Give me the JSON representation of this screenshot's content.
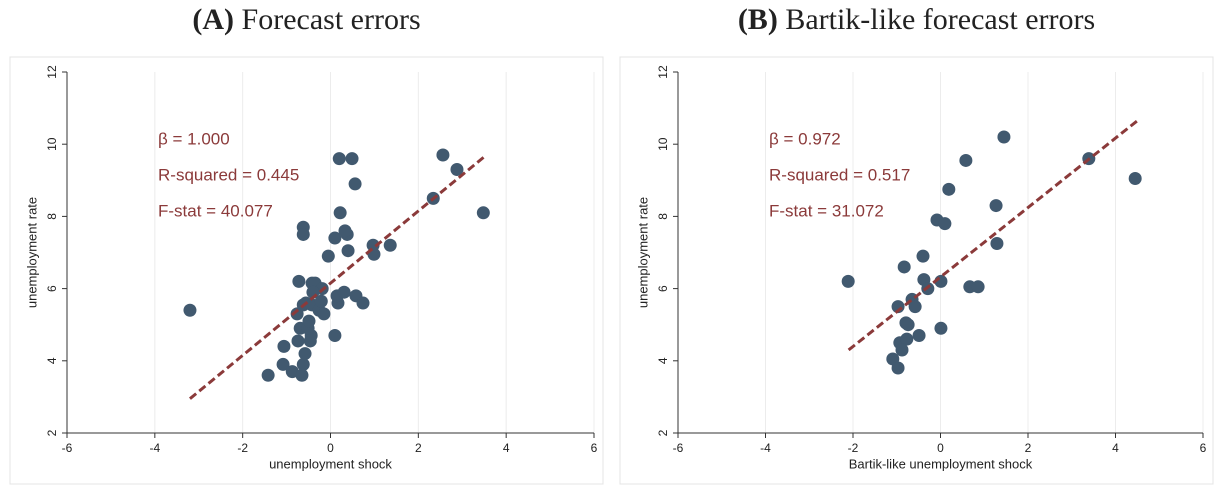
{
  "chart_data": [
    {
      "type": "scatter",
      "title_prefix": "(A)",
      "title": "Forecast errors",
      "x_label": "unemployment shock",
      "y_label": "unemployment rate",
      "xlim": [
        -6,
        6
      ],
      "ylim": [
        2,
        12
      ],
      "xticks": [
        -6,
        -4,
        -2,
        0,
        2,
        4,
        6
      ],
      "yticks": [
        2,
        4,
        6,
        8,
        10,
        12
      ],
      "grid": true,
      "color": "#41596f",
      "line_color": "#8b3a3a",
      "x": [
        -3.2,
        -1.42,
        -1.08,
        -0.87,
        -0.65,
        -0.62,
        -1.06,
        -0.58,
        -0.46,
        -0.44,
        -0.74,
        -0.69,
        -0.51,
        -0.49,
        -0.76,
        -0.62,
        -0.56,
        -0.42,
        -0.26,
        -0.15,
        -0.21,
        -0.72,
        -0.42,
        -0.35,
        -0.19,
        -0.4,
        0.1,
        0.17,
        0.15,
        0.31,
        0.58,
        0.74,
        -0.05,
        0.1,
        0.38,
        0.33,
        0.4,
        -0.62,
        -0.62,
        0.22,
        0.97,
        0.99,
        1.36,
        0.2,
        0.49,
        0.56,
        2.34,
        2.56,
        2.88,
        3.48
      ],
      "y": [
        5.4,
        3.6,
        3.9,
        3.7,
        3.6,
        3.9,
        4.4,
        4.2,
        4.55,
        4.7,
        4.55,
        4.9,
        4.9,
        5.1,
        5.3,
        5.55,
        5.6,
        5.55,
        5.4,
        5.3,
        5.65,
        6.2,
        6.15,
        6.15,
        6.0,
        5.9,
        4.7,
        5.6,
        5.8,
        5.9,
        5.8,
        5.6,
        6.9,
        7.4,
        7.5,
        7.6,
        7.05,
        7.7,
        7.5,
        8.1,
        7.2,
        6.95,
        7.2,
        9.6,
        9.6,
        8.9,
        8.5,
        9.7,
        9.3,
        8.1
      ],
      "fit_line": {
        "x": [
          -3.2,
          3.5
        ],
        "y": [
          2.95,
          9.65
        ]
      },
      "annotations": [
        "β = 1.000",
        "R-squared = 0.445",
        "F-stat = 40.077"
      ]
    },
    {
      "type": "scatter",
      "title_prefix": "(B)",
      "title": "Bartik-like forecast errors",
      "x_label": "Bartik-like unemployment shock",
      "y_label": "unemployment rate",
      "xlim": [
        -6,
        6
      ],
      "ylim": [
        2,
        12
      ],
      "xticks": [
        -6,
        -4,
        -2,
        0,
        2,
        4,
        6
      ],
      "yticks": [
        2,
        4,
        6,
        8,
        10,
        12
      ],
      "grid": true,
      "color": "#41596f",
      "line_color": "#8b3a3a",
      "x": [
        -2.11,
        -0.97,
        -0.83,
        -0.79,
        -0.74,
        -0.93,
        -0.77,
        -0.88,
        -1.09,
        -0.97,
        -0.65,
        -0.58,
        -0.49,
        -0.4,
        -0.38,
        -0.29,
        -0.08,
        0.1,
        0.01,
        0.01,
        0.19,
        0.58,
        0.67,
        0.86,
        1.27,
        1.29,
        1.45,
        3.39,
        4.45
      ],
      "y": [
        6.2,
        5.5,
        6.6,
        5.05,
        5.0,
        4.5,
        4.6,
        4.3,
        4.05,
        3.8,
        5.7,
        5.5,
        4.7,
        6.9,
        6.25,
        6.0,
        7.9,
        7.8,
        6.2,
        4.9,
        8.75,
        9.55,
        6.05,
        6.05,
        8.3,
        7.25,
        10.2,
        9.6,
        9.05
      ],
      "fit_line": {
        "x": [
          -2.1,
          4.5
        ],
        "y": [
          4.3,
          10.65
        ]
      },
      "annotations": [
        "β = 0.972",
        "R-squared = 0.517",
        "F-stat = 31.072"
      ]
    }
  ]
}
